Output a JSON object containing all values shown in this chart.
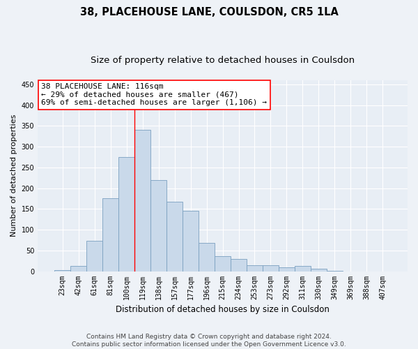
{
  "title": "38, PLACEHOUSE LANE, COULSDON, CR5 1LA",
  "subtitle": "Size of property relative to detached houses in Coulsdon",
  "xlabel": "Distribution of detached houses by size in Coulsdon",
  "ylabel": "Number of detached properties",
  "bar_color": "#c9d9ea",
  "bar_edge_color": "#7aa0c0",
  "categories": [
    "23sqm",
    "42sqm",
    "61sqm",
    "81sqm",
    "100sqm",
    "119sqm",
    "138sqm",
    "157sqm",
    "177sqm",
    "196sqm",
    "215sqm",
    "234sqm",
    "253sqm",
    "273sqm",
    "292sqm",
    "311sqm",
    "330sqm",
    "349sqm",
    "369sqm",
    "388sqm",
    "407sqm"
  ],
  "values": [
    2,
    12,
    73,
    175,
    275,
    340,
    220,
    167,
    145,
    68,
    37,
    30,
    15,
    15,
    10,
    13,
    6,
    1,
    0,
    0,
    0
  ],
  "ylim": [
    0,
    460
  ],
  "yticks": [
    0,
    50,
    100,
    150,
    200,
    250,
    300,
    350,
    400,
    450
  ],
  "marker_bin_index": 5,
  "annotation_line1": "38 PLACEHOUSE LANE: 116sqm",
  "annotation_line2": "← 29% of detached houses are smaller (467)",
  "annotation_line3": "69% of semi-detached houses are larger (1,106) →",
  "footer_line1": "Contains HM Land Registry data © Crown copyright and database right 2024.",
  "footer_line2": "Contains public sector information licensed under the Open Government Licence v3.0.",
  "background_color": "#eef2f7",
  "plot_bg_color": "#e8eef5",
  "grid_color": "#ffffff",
  "title_fontsize": 10.5,
  "subtitle_fontsize": 9.5,
  "xlabel_fontsize": 8.5,
  "ylabel_fontsize": 8,
  "tick_fontsize": 7,
  "annotation_fontsize": 8,
  "footer_fontsize": 6.5
}
